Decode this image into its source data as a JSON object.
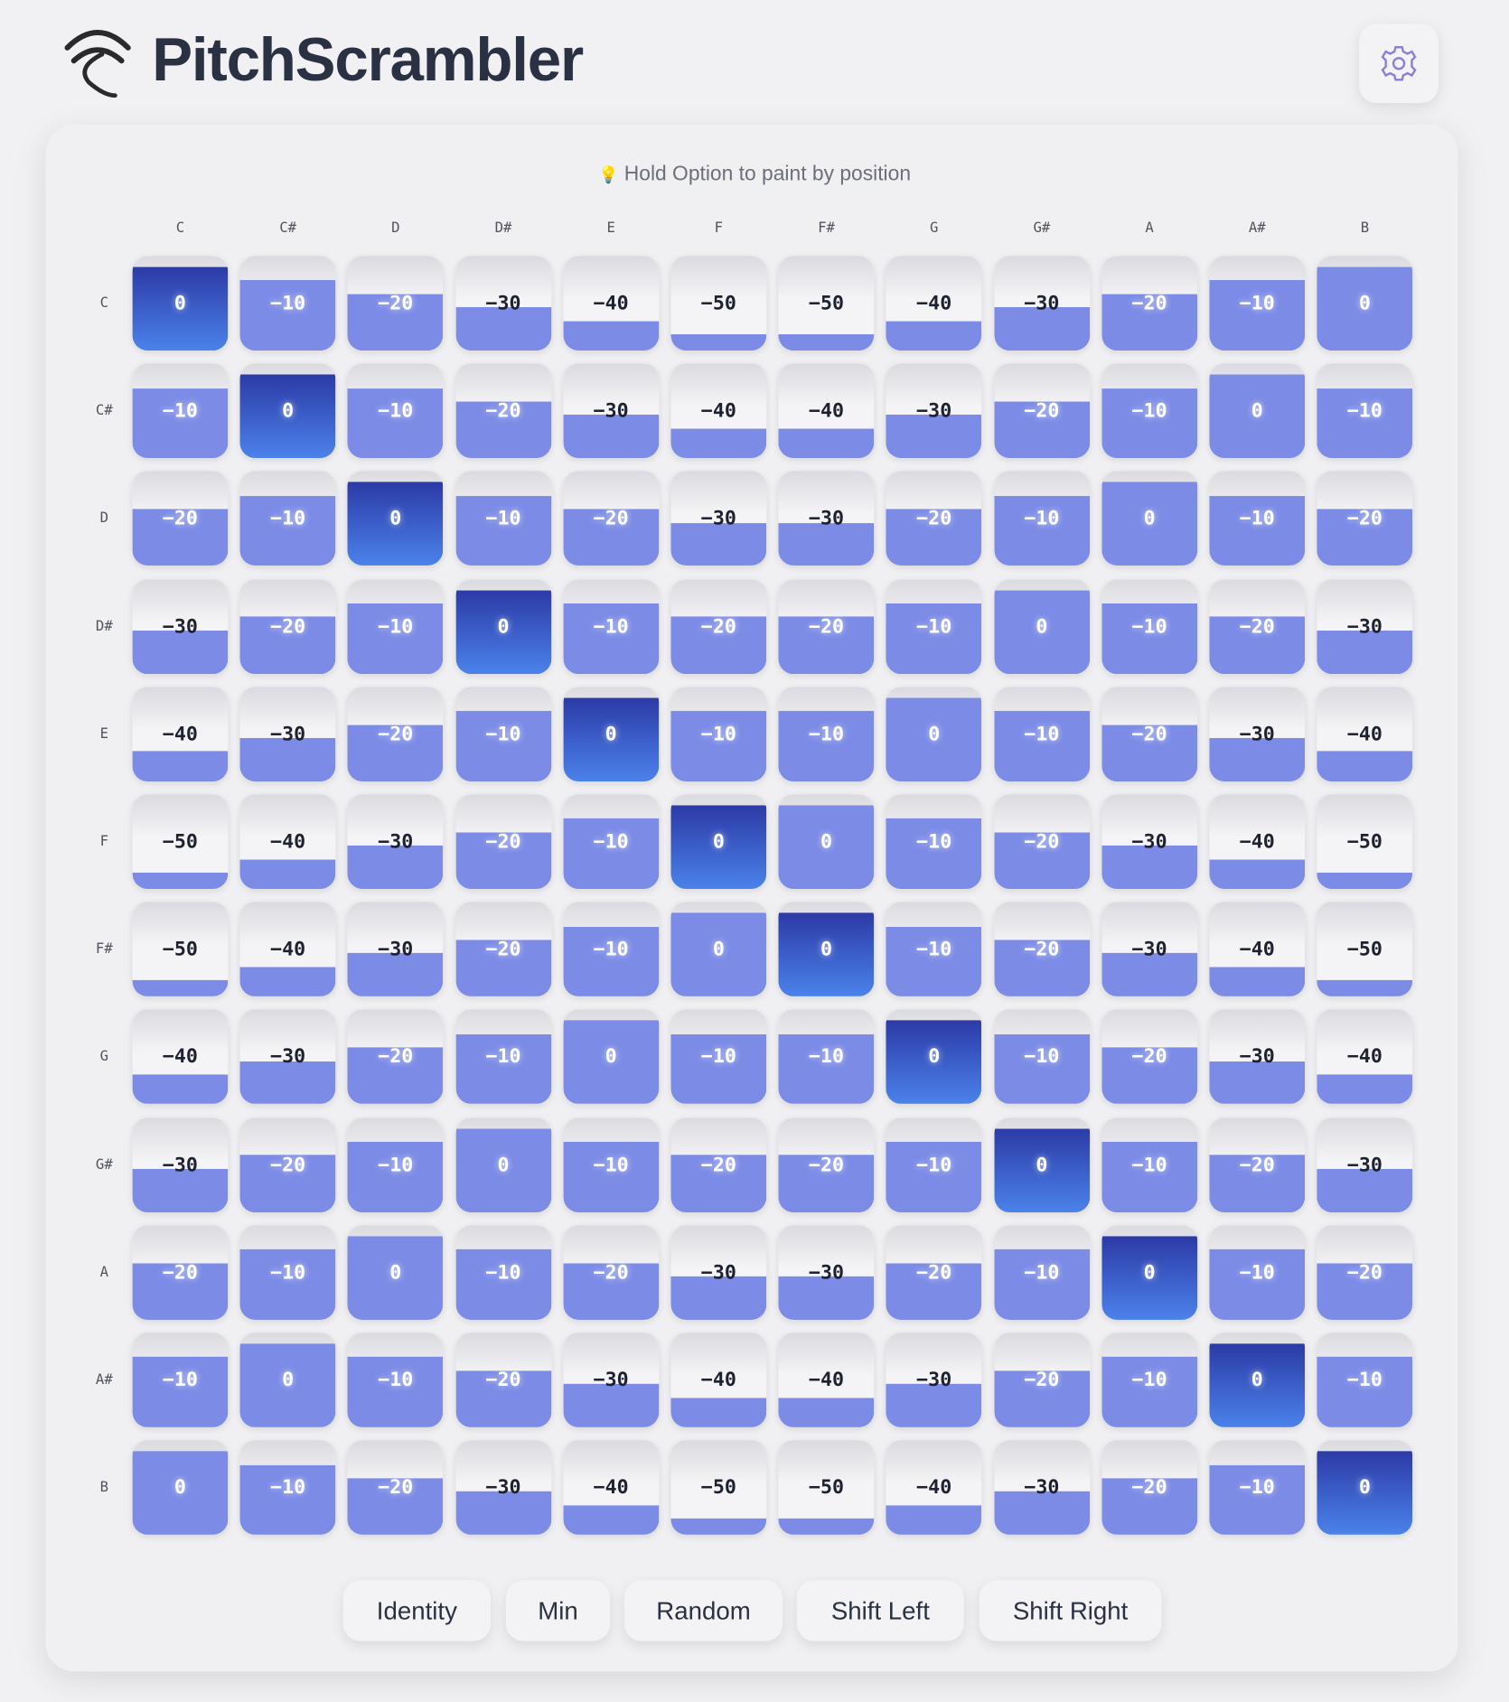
{
  "header": {
    "title": "PitchScrambler"
  },
  "hint": "Hold Option to paint by position",
  "grid": {
    "columns": [
      "C",
      "C#",
      "D",
      "D#",
      "E",
      "F",
      "F#",
      "G",
      "G#",
      "A",
      "A#",
      "B"
    ],
    "rows": [
      {
        "label": "C",
        "values": [
          "0",
          "−10",
          "−20",
          "−30",
          "−40",
          "−50",
          "−50",
          "−40",
          "−30",
          "−20",
          "−10",
          "0"
        ]
      },
      {
        "label": "C#",
        "values": [
          "−10",
          "0",
          "−10",
          "−20",
          "−30",
          "−40",
          "−40",
          "−30",
          "−20",
          "−10",
          "0",
          "−10"
        ]
      },
      {
        "label": "D",
        "values": [
          "−20",
          "−10",
          "0",
          "−10",
          "−20",
          "−30",
          "−30",
          "−20",
          "−10",
          "0",
          "−10",
          "−20"
        ]
      },
      {
        "label": "D#",
        "values": [
          "−30",
          "−20",
          "−10",
          "0",
          "−10",
          "−20",
          "−20",
          "−10",
          "0",
          "−10",
          "−20",
          "−30"
        ]
      },
      {
        "label": "E",
        "values": [
          "−40",
          "−30",
          "−20",
          "−10",
          "0",
          "−10",
          "−10",
          "0",
          "−10",
          "−20",
          "−30",
          "−40"
        ]
      },
      {
        "label": "F",
        "values": [
          "−50",
          "−40",
          "−30",
          "−20",
          "−10",
          "0",
          "0",
          "−10",
          "−20",
          "−30",
          "−40",
          "−50"
        ]
      },
      {
        "label": "F#",
        "values": [
          "−50",
          "−40",
          "−30",
          "−20",
          "−10",
          "0",
          "0",
          "−10",
          "−20",
          "−30",
          "−40",
          "−50"
        ]
      },
      {
        "label": "G",
        "values": [
          "−40",
          "−30",
          "−20",
          "−10",
          "0",
          "−10",
          "−10",
          "0",
          "−10",
          "−20",
          "−30",
          "−40"
        ]
      },
      {
        "label": "G#",
        "values": [
          "−30",
          "−20",
          "−10",
          "0",
          "−10",
          "−20",
          "−20",
          "−10",
          "0",
          "−10",
          "−20",
          "−30"
        ]
      },
      {
        "label": "A",
        "values": [
          "−20",
          "−10",
          "0",
          "−10",
          "−20",
          "−30",
          "−30",
          "−20",
          "−10",
          "0",
          "−10",
          "−20"
        ]
      },
      {
        "label": "A#",
        "values": [
          "−10",
          "0",
          "−10",
          "−20",
          "−30",
          "−40",
          "−40",
          "−30",
          "−20",
          "−10",
          "0",
          "−10"
        ]
      },
      {
        "label": "B",
        "values": [
          "0",
          "−10",
          "−20",
          "−30",
          "−40",
          "−50",
          "−50",
          "−40",
          "−30",
          "−20",
          "−10",
          "0"
        ]
      }
    ]
  },
  "buttons": [
    "Identity",
    "Min",
    "Random",
    "Shift Left",
    "Shift Right"
  ]
}
